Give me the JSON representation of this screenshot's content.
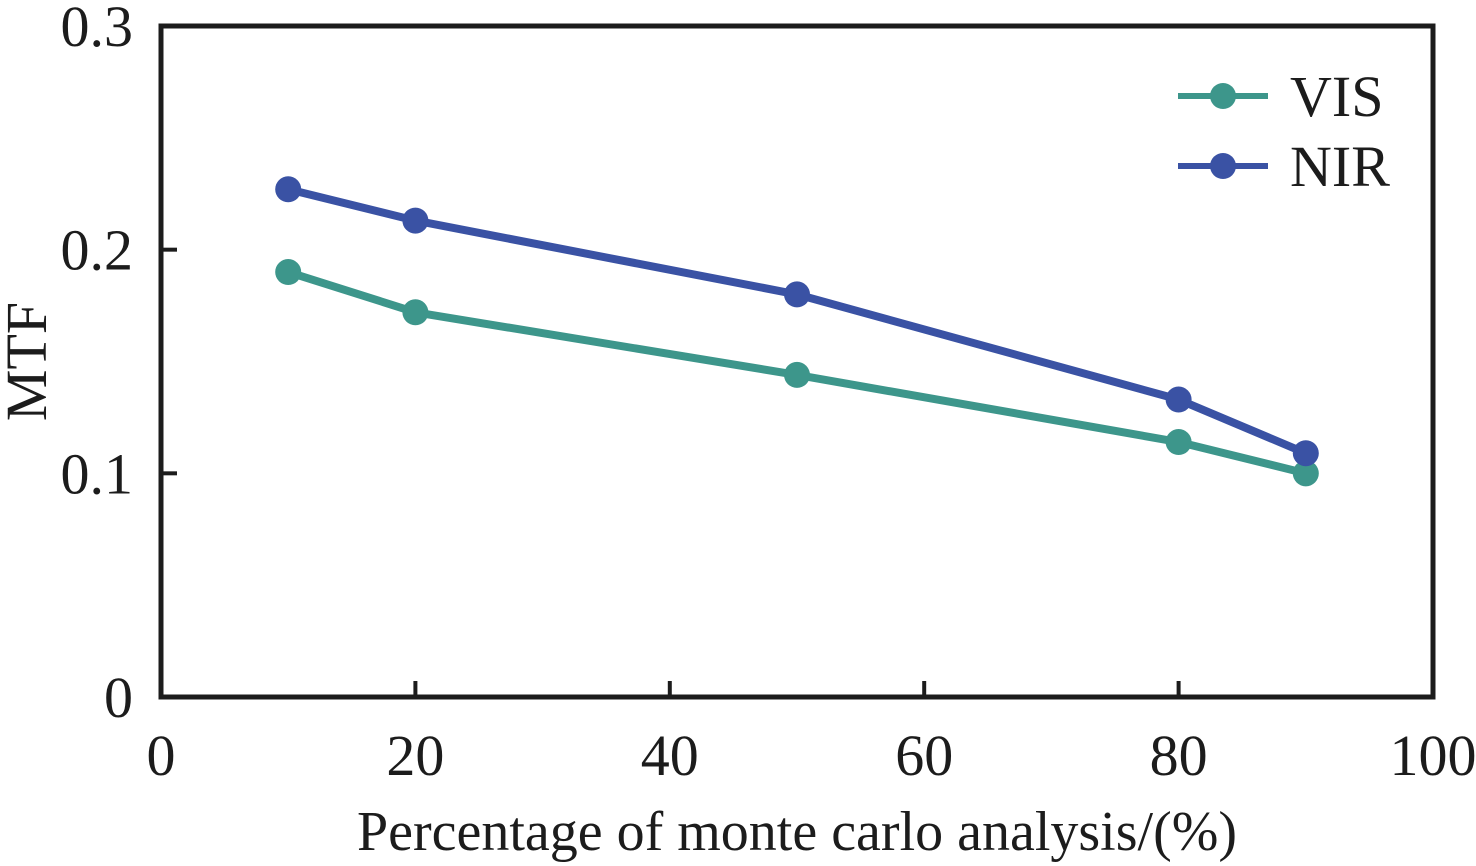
{
  "figure": {
    "background": "#ffffff",
    "axis_color": "#1c1c1c",
    "text_color": "#1c1c1c"
  },
  "chart_data": {
    "type": "line",
    "title": "",
    "xlabel": "Percentage of monte carlo analysis/(%)",
    "ylabel": "MTF",
    "xlim": [
      0,
      100
    ],
    "ylim": [
      0,
      0.3
    ],
    "x_ticks": [
      0,
      20,
      40,
      60,
      80,
      100
    ],
    "x_tick_labels": [
      "0",
      "20",
      "40",
      "60",
      "80",
      "100"
    ],
    "y_ticks": [
      0,
      0.1,
      0.2,
      0.3
    ],
    "y_tick_labels": [
      "0",
      "0.1",
      "0.2",
      "0.3"
    ],
    "grid": false,
    "frame": "box",
    "tick_direction": "in",
    "legend_position": "top-right",
    "marker": "circle",
    "series": [
      {
        "name": "VIS",
        "color": "#3D968B",
        "x": [
          10,
          20,
          50,
          80,
          90
        ],
        "y": [
          0.19,
          0.172,
          0.144,
          0.114,
          0.1
        ]
      },
      {
        "name": "NIR",
        "color": "#3A52A4",
        "x": [
          10,
          20,
          50,
          80,
          90
        ],
        "y": [
          0.227,
          0.213,
          0.18,
          0.133,
          0.109
        ]
      }
    ]
  }
}
